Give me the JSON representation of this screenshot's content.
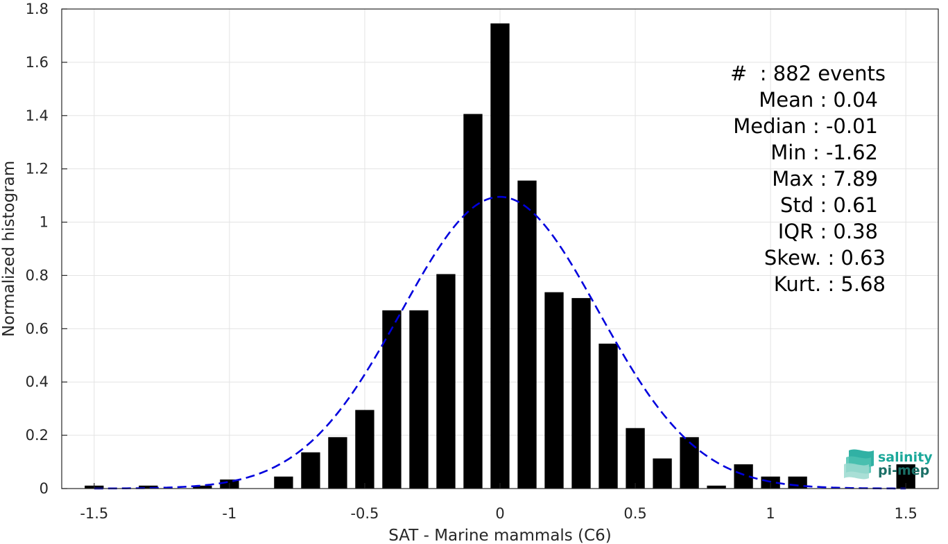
{
  "chart_data": {
    "type": "bar",
    "xlabel": "SAT - Marine mammals (C6)",
    "ylabel": "Normalized histogram",
    "xlim": [
      -1.62,
      1.62
    ],
    "ylim": [
      0,
      1.8
    ],
    "xticks": [
      -1.5,
      -1,
      -0.5,
      0,
      0.5,
      1,
      1.5
    ],
    "xtick_labels": [
      "-1.5",
      "-1",
      "-0.5",
      "0",
      "0.5",
      "1",
      "1.5"
    ],
    "yticks": [
      0,
      0.2,
      0.4,
      0.6,
      0.8,
      1,
      1.2,
      1.4,
      1.6,
      1.8
    ],
    "ytick_labels": [
      "0",
      "0.2",
      "0.4",
      "0.6",
      "0.8",
      "1",
      "1.2",
      "1.4",
      "1.6",
      "1.8"
    ],
    "grid": true,
    "bar_color": "#000000",
    "bar_width": 0.07,
    "bins": [
      {
        "x": -1.5,
        "value": 0.011
      },
      {
        "x": -1.3,
        "value": 0.011
      },
      {
        "x": -1.1,
        "value": 0.011
      },
      {
        "x": -1.0,
        "value": 0.034
      },
      {
        "x": -0.8,
        "value": 0.045
      },
      {
        "x": -0.7,
        "value": 0.136
      },
      {
        "x": -0.6,
        "value": 0.193
      },
      {
        "x": -0.5,
        "value": 0.295
      },
      {
        "x": -0.4,
        "value": 0.669
      },
      {
        "x": -0.3,
        "value": 0.669
      },
      {
        "x": -0.2,
        "value": 0.805
      },
      {
        "x": -0.1,
        "value": 1.406
      },
      {
        "x": 0.0,
        "value": 1.746
      },
      {
        "x": 0.1,
        "value": 1.156
      },
      {
        "x": 0.2,
        "value": 0.737
      },
      {
        "x": 0.3,
        "value": 0.715
      },
      {
        "x": 0.4,
        "value": 0.544
      },
      {
        "x": 0.5,
        "value": 0.227
      },
      {
        "x": 0.6,
        "value": 0.113
      },
      {
        "x": 0.7,
        "value": 0.193
      },
      {
        "x": 0.8,
        "value": 0.011
      },
      {
        "x": 0.9,
        "value": 0.091
      },
      {
        "x": 1.0,
        "value": 0.045
      },
      {
        "x": 1.1,
        "value": 0.045
      },
      {
        "x": 1.5,
        "value": 0.091
      }
    ],
    "fit_curve": {
      "type": "gaussian",
      "mean": 0.0,
      "std": 0.365,
      "peak": 1.095,
      "color": "#0000dd",
      "style": "dashed"
    }
  },
  "stats": [
    {
      "label": "#",
      "value": ": 882 events"
    },
    {
      "label": "Mean",
      "value": ": 0.04"
    },
    {
      "label": "Median",
      "value": ": -0.01"
    },
    {
      "label": "Min",
      "value": ": -1.62"
    },
    {
      "label": "Max",
      "value": ": 7.89"
    },
    {
      "label": "Std",
      "value": ": 0.61"
    },
    {
      "label": "IQR",
      "value": ": 0.38"
    },
    {
      "label": "Skew.",
      "value": ": 0.63"
    },
    {
      "label": "Kurt.",
      "value": ": 5.68"
    }
  ],
  "logo": {
    "line1": "salinity",
    "line2": "pi-mep",
    "color1": "#1ba89a",
    "color2": "#1a6f66"
  }
}
